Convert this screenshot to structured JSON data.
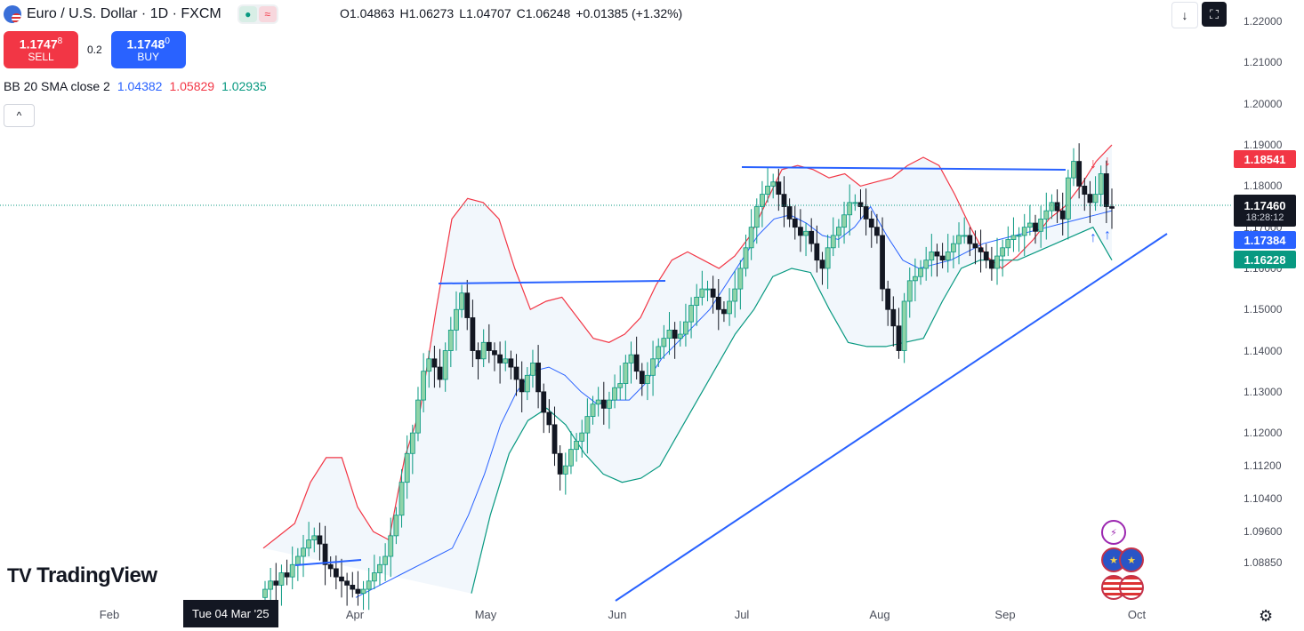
{
  "header": {
    "title": "Euro / U.S. Dollar · 1D · FXCM",
    "flag_icon": "eur-usd-flag-icon",
    "ohlc": {
      "open": "O1.04863",
      "high": "H1.06273",
      "low": "L1.04707",
      "close": "C1.06248",
      "change": "+0.01385 (+1.32%)"
    }
  },
  "trade": {
    "sell_price_main": "1.1747",
    "sell_price_sup": "8",
    "sell_label": "SELL",
    "spread": "0.2",
    "buy_price_main": "1.1748",
    "buy_price_sup": "0",
    "buy_label": "BUY"
  },
  "indicator": {
    "name": "BB 20 SMA close 2",
    "basis": "1.04382",
    "upper": "1.05829",
    "lower": "1.02935"
  },
  "toolbar": {
    "collapse_glyph": "^",
    "download_glyph": "↓",
    "fullscreen_glyph": "⛶"
  },
  "price_labels": {
    "upper": "1.18541",
    "last": "1.17460",
    "countdown": "18:28:12",
    "basis": "1.17384",
    "lower": "1.16228"
  },
  "crosshair_date": "Tue 04 Mar '25",
  "brand": {
    "name": "TradingView",
    "mark": "TV"
  },
  "colors": {
    "up": "#089981",
    "down": "#131722",
    "bb_upper": "#f23645",
    "bb_basis": "#2962ff",
    "bb_lower": "#089981",
    "trendline": "#2962ff",
    "band_fill": "#f2f7fc"
  },
  "chart_data": {
    "type": "candlestick",
    "symbol": "EUR/USD",
    "timeframe": "1D",
    "y_ticks": [
      "1.22000",
      "1.21000",
      "1.20000",
      "1.19000",
      "1.18000",
      "1.17000",
      "1.16000",
      "1.15000",
      "1.14000",
      "1.13000",
      "1.12000",
      "1.11200",
      "1.10400",
      "1.09600",
      "1.08850"
    ],
    "x_ticks": [
      "Feb",
      "Apr",
      "May",
      "Jun",
      "Jul",
      "Aug",
      "Sep",
      "Oct"
    ],
    "ylim": [
      1.0805,
      1.2222
    ],
    "closes_approx": [
      1.082,
      1.084,
      1.083,
      1.086,
      1.085,
      1.088,
      1.09,
      1.092,
      1.094,
      1.095,
      1.093,
      1.088,
      1.087,
      1.085,
      1.084,
      1.083,
      1.082,
      1.081,
      1.082,
      1.084,
      1.086,
      1.088,
      1.09,
      1.095,
      1.1,
      1.108,
      1.115,
      1.12,
      1.128,
      1.135,
      1.138,
      1.136,
      1.133,
      1.14,
      1.145,
      1.15,
      1.154,
      1.148,
      1.14,
      1.138,
      1.142,
      1.14,
      1.139,
      1.137,
      1.138,
      1.136,
      1.133,
      1.13,
      1.134,
      1.137,
      1.13,
      1.125,
      1.122,
      1.115,
      1.11,
      1.112,
      1.116,
      1.118,
      1.12,
      1.124,
      1.127,
      1.128,
      1.126,
      1.128,
      1.131,
      1.132,
      1.137,
      1.139,
      1.135,
      1.132,
      1.134,
      1.138,
      1.141,
      1.143,
      1.145,
      1.143,
      1.144,
      1.147,
      1.151,
      1.153,
      1.155,
      1.155,
      1.153,
      1.15,
      1.149,
      1.152,
      1.155,
      1.16,
      1.165,
      1.17,
      1.175,
      1.178,
      1.18,
      1.181,
      1.178,
      1.175,
      1.172,
      1.17,
      1.168,
      1.169,
      1.166,
      1.162,
      1.16,
      1.165,
      1.168,
      1.17,
      1.173,
      1.176,
      1.176,
      1.175,
      1.172,
      1.17,
      1.168,
      1.155,
      1.15,
      1.146,
      1.14,
      1.152,
      1.157,
      1.158,
      1.16,
      1.162,
      1.164,
      1.163,
      1.162,
      1.164,
      1.166,
      1.168,
      1.168,
      1.166,
      1.165,
      1.164,
      1.162,
      1.16,
      1.163,
      1.165,
      1.167,
      1.168,
      1.168,
      1.17,
      1.171,
      1.169,
      1.172,
      1.174,
      1.176,
      1.174,
      1.172,
      1.182,
      1.186,
      1.18,
      1.178,
      1.176,
      1.178,
      1.183,
      1.175,
      1.1746
    ],
    "bb_upper_approx": [
      1.092,
      1.095,
      1.098,
      1.108,
      1.114,
      1.114,
      1.102,
      1.096,
      1.094,
      1.114,
      1.126,
      1.15,
      1.172,
      1.177,
      1.176,
      1.172,
      1.16,
      1.15,
      1.152,
      1.153,
      1.148,
      1.143,
      1.142,
      1.144,
      1.148,
      1.156,
      1.162,
      1.164,
      1.162,
      1.16,
      1.163,
      1.168,
      1.176,
      1.184,
      1.185,
      1.184,
      1.182,
      1.183,
      1.18,
      1.181,
      1.182,
      1.185,
      1.187,
      1.185,
      1.178,
      1.17,
      1.163,
      1.16,
      1.163,
      1.167,
      1.172,
      1.175,
      1.18,
      1.186,
      1.19
    ],
    "bb_basis_approx": [
      1.08,
      1.082,
      1.084,
      1.086,
      1.088,
      1.09,
      1.092,
      1.1,
      1.11,
      1.122,
      1.13,
      1.135,
      1.136,
      1.134,
      1.13,
      1.127,
      1.128,
      1.128,
      1.132,
      1.138,
      1.142,
      1.146,
      1.15,
      1.156,
      1.162,
      1.168,
      1.172,
      1.173,
      1.171,
      1.168,
      1.167,
      1.17,
      1.175,
      1.168,
      1.162,
      1.16,
      1.161,
      1.162,
      1.164,
      1.166,
      1.167,
      1.168,
      1.169,
      1.17,
      1.171,
      1.172,
      1.173,
      1.174
    ],
    "bb_lower_approx": [
      1.081,
      1.1,
      1.115,
      1.123,
      1.126,
      1.122,
      1.115,
      1.11,
      1.108,
      1.109,
      1.112,
      1.12,
      1.128,
      1.136,
      1.144,
      1.15,
      1.158,
      1.16,
      1.159,
      1.15,
      1.142,
      1.141,
      1.141,
      1.142,
      1.143,
      1.152,
      1.16,
      1.162,
      1.162,
      1.162,
      1.164,
      1.166,
      1.168,
      1.17,
      1.162
    ],
    "trendline_support": [
      {
        "date": "Jun",
        "value": 1.086
      },
      {
        "date": "Sep-end",
        "value": 1.168
      }
    ],
    "resistance_lines": [
      {
        "value": 1.184,
        "from": "Jul",
        "to": "Sep"
      },
      {
        "value": 1.157,
        "from": "Apr",
        "to": "Jun"
      }
    ]
  }
}
